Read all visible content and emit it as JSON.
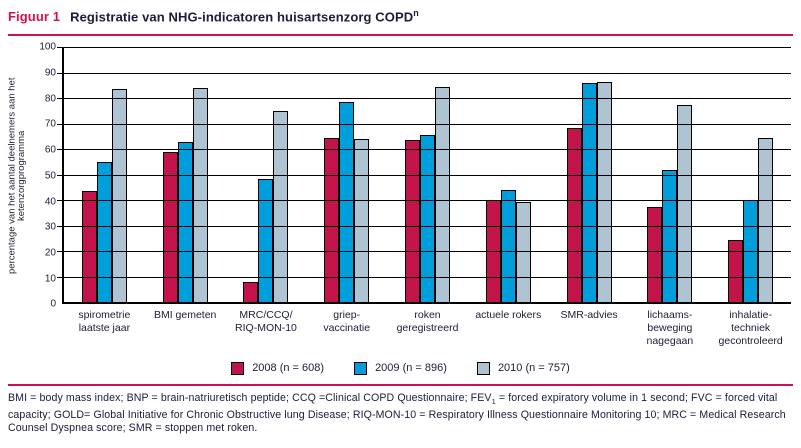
{
  "header": {
    "figure_label": "Figuur 1",
    "title": "Registratie van NHG-indicatoren huisartsenzorg COPD",
    "title_superscript": "n"
  },
  "chart_data": {
    "type": "bar",
    "title": "Registratie van NHG-indicatoren huisartsenzorg COPD",
    "ylabel": "percentage van het aantal deelnemers aan het ketenzorgprogramma",
    "ylim": [
      0,
      100
    ],
    "yticks": [
      100,
      90,
      80,
      70,
      60,
      50,
      40,
      30,
      20,
      10,
      0
    ],
    "grid": true,
    "legend_position": "bottom",
    "categories": [
      "spirometrie\nlaatste jaar",
      "BMI gemeten",
      "MRC/CCQ/\nRIQ-MON-10",
      "griep-\nvaccinatie",
      "roken\ngeregistreerd",
      "actuele rokers",
      "SMR-advies",
      "lichaams-\nbeweging\nnagegaan",
      "inhalatie-\ntechniek\ngecontroleerd"
    ],
    "series": [
      {
        "name": "2008 (n = 608)",
        "color": "#c2134b",
        "values": [
          43.5,
          59,
          8,
          64.5,
          63.5,
          40,
          68.5,
          37.5,
          24.5
        ]
      },
      {
        "name": "2009 (n = 896)",
        "color": "#009fdb",
        "values": [
          55,
          63,
          48.5,
          78.5,
          65.5,
          44,
          86,
          52,
          40
        ]
      },
      {
        "name": "2010 (n = 757)",
        "color": "#aec4d2",
        "values": [
          83.5,
          84,
          75,
          64,
          84.5,
          39.5,
          86.5,
          77.5,
          64.5
        ]
      }
    ]
  },
  "footnote": {
    "pre": "BMI = body mass index; BNP = brain-natriuretisch peptide; CCQ =Clinical COPD Questionnaire; FEV",
    "sub": "1",
    "post": " = forced expiratory volume in 1 second; FVC = forced vital capacity; GOLD= Global Initiative for Chronic Obstructive lung Disease; RIQ-MON-10 = Respiratory Illness Questionnaire Monitoring 10; MRC = Medical Research Counsel Dyspnea score; SMR = stoppen met roken."
  },
  "colors": {
    "accent": "#d01055",
    "text": "#1e1b39"
  }
}
